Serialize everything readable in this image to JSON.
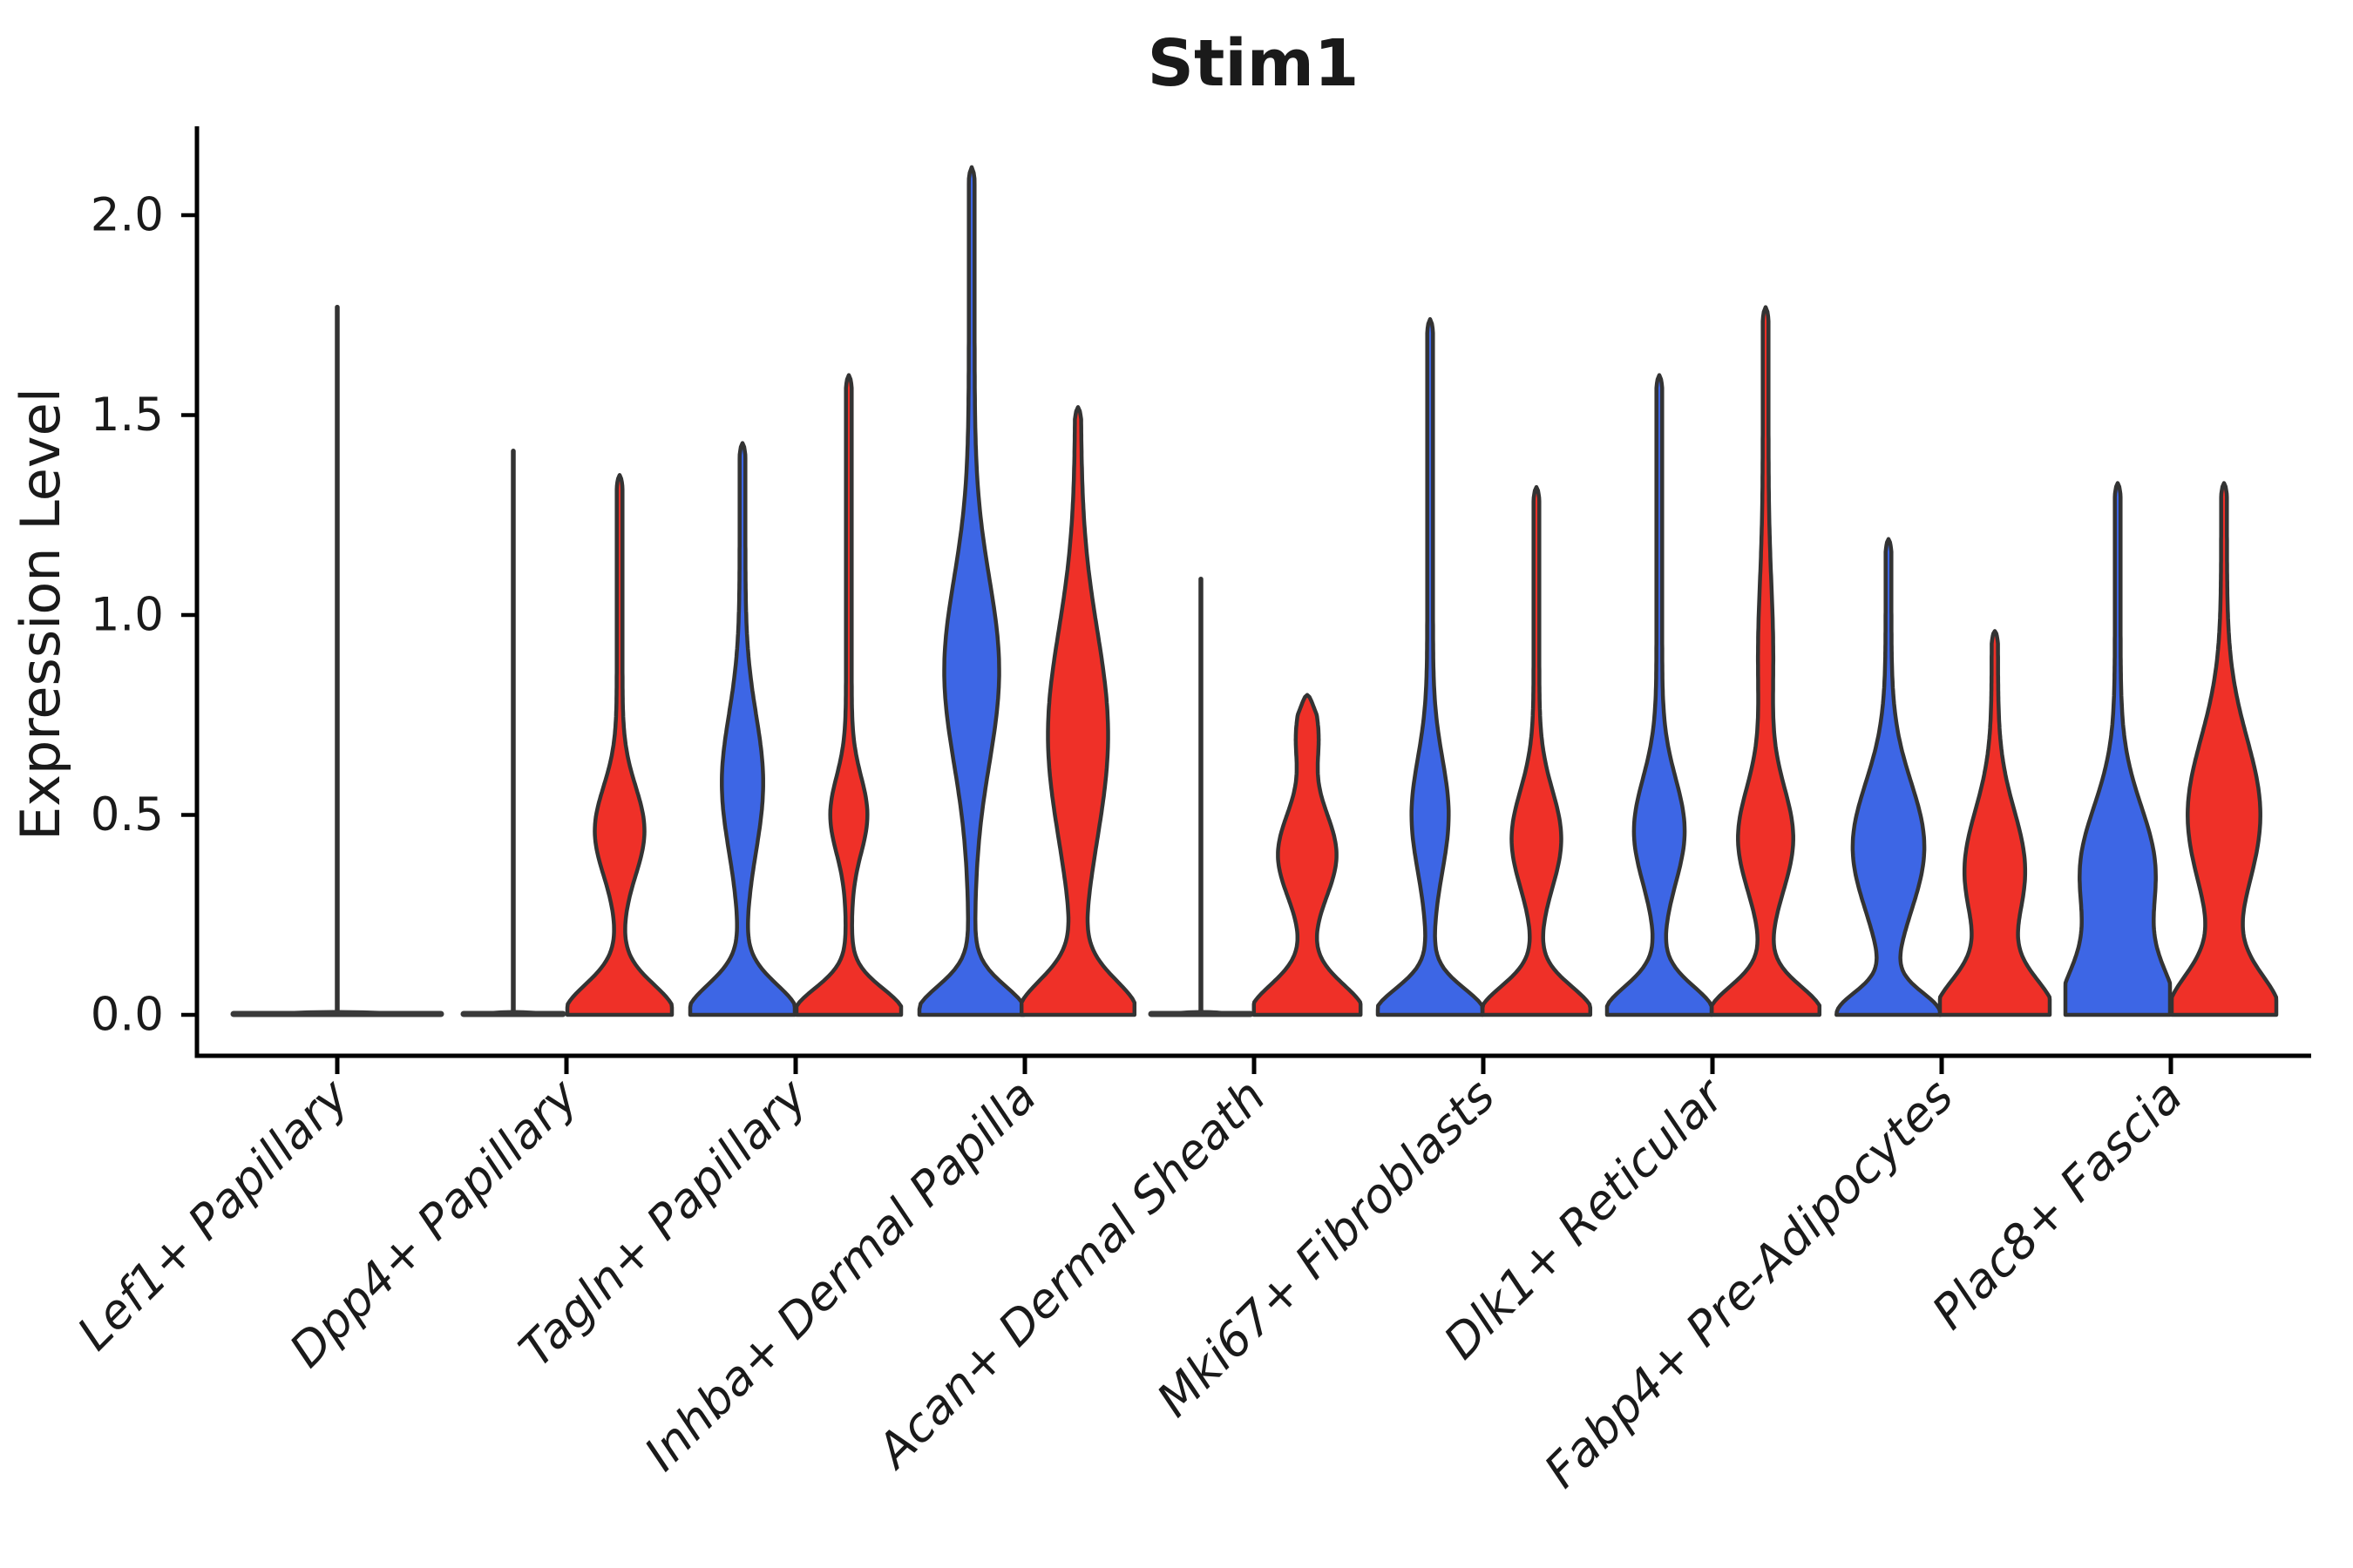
{
  "title": "Stim1",
  "colors": {
    "blue": "#3D66E5",
    "red": "#EF3028",
    "outline": "#333333",
    "flat": "#3A3A3A",
    "axis": "#000000"
  },
  "chart_data": {
    "type": "violin",
    "title": "Stim1",
    "xlabel": "",
    "ylabel": "Expression Level",
    "ylim": [
      0,
      2.2
    ],
    "yticks": [
      0,
      0.5,
      1.0,
      1.5,
      2.0
    ],
    "ytick_labels": [
      "0.0",
      "0.5",
      "1.0",
      "1.5",
      "2.0"
    ],
    "grid": false,
    "legend": "none",
    "split_colors": {
      "left": "blue",
      "right": "red"
    },
    "categories": [
      "Lef1+ Papillary",
      "Dpp4+ Papillary",
      "Tagln+ Papillary",
      "Inhba+ Dermal Papilla",
      "Acan+ Dermal Sheath",
      "Mki67+ Fibroblasts",
      "Dlk1+ Reticular",
      "Fabp4+ Pre-Adipocytes",
      "Plac8+ Fascia"
    ],
    "groups": [
      {
        "label": "Lef1+ Papillary",
        "violins": [
          {
            "split": "single",
            "flat": true,
            "max": 1.77
          }
        ]
      },
      {
        "label": "Dpp4+ Papillary",
        "violins": [
          {
            "split": "blue",
            "flat": true,
            "max": 1.41
          },
          {
            "split": "red",
            "flat": false,
            "max": 1.35,
            "base": [
              1.0,
              0.075
            ],
            "bumps": [
              [
                0.42,
                0.46,
                0.11
              ]
            ]
          }
        ]
      },
      {
        "label": "Tagln+ Papillary",
        "violins": [
          {
            "split": "blue",
            "flat": false,
            "max": 1.43,
            "base": [
              1.0,
              0.075
            ],
            "bumps": [
              [
                0.34,
                0.58,
                0.17
              ]
            ]
          },
          {
            "split": "red",
            "flat": false,
            "max": 1.6,
            "base": [
              1.0,
              0.065
            ],
            "bumps": [
              [
                0.3,
                0.5,
                0.095
              ]
            ]
          }
        ]
      },
      {
        "label": "Inhba+ Dermal Papilla",
        "violins": [
          {
            "split": "blue",
            "flat": false,
            "max": 2.12,
            "base": [
              1.0,
              0.07
            ],
            "bumps": [
              [
                0.47,
                0.86,
                0.23
              ]
            ]
          },
          {
            "split": "red",
            "flat": false,
            "max": 1.52,
            "base": [
              1.08,
              0.085
            ],
            "bumps": [
              [
                0.52,
                0.7,
                0.26
              ]
            ]
          }
        ]
      },
      {
        "label": "Acan+ Dermal Sheath",
        "violins": [
          {
            "split": "blue",
            "flat": true,
            "max": 1.09
          },
          {
            "split": "red",
            "flat": false,
            "max": 0.8,
            "base": [
              1.02,
              0.075
            ],
            "bumps": [
              [
                0.48,
                0.4,
                0.105
              ],
              [
                0.13,
                0.7,
                0.07
              ]
            ],
            "spike": 0.08,
            "tip": 0.05
          }
        ]
      },
      {
        "label": "Mki67+ Fibroblasts",
        "violins": [
          {
            "split": "blue",
            "flat": false,
            "max": 1.74,
            "base": [
              1.0,
              0.065
            ],
            "bumps": [
              [
                0.3,
                0.5,
                0.14
              ]
            ]
          },
          {
            "split": "red",
            "flat": false,
            "max": 1.32,
            "base": [
              1.03,
              0.07
            ],
            "bumps": [
              [
                0.42,
                0.44,
                0.12
              ]
            ]
          }
        ]
      },
      {
        "label": "Dlk1+ Reticular",
        "violins": [
          {
            "split": "blue",
            "flat": false,
            "max": 1.6,
            "base": [
              1.0,
              0.07
            ],
            "bumps": [
              [
                0.43,
                0.46,
                0.13
              ]
            ]
          },
          {
            "split": "red",
            "flat": false,
            "max": 1.77,
            "base": [
              1.03,
              0.07
            ],
            "bumps": [
              [
                0.47,
                0.44,
                0.13
              ],
              [
                0.09,
                0.9,
                0.18
              ]
            ]
          }
        ]
      },
      {
        "label": "Fabp4+ Pre-Adipocytes",
        "violins": [
          {
            "split": "blue",
            "flat": false,
            "max": 1.19,
            "base": [
              0.92,
              0.055
            ],
            "bumps": [
              [
                0.63,
                0.42,
                0.16
              ]
            ]
          },
          {
            "split": "red",
            "flat": false,
            "max": 0.96,
            "base": [
              1.05,
              0.09
            ],
            "bumps": [
              [
                0.52,
                0.36,
                0.15
              ]
            ],
            "spike": 0.06
          }
        ]
      },
      {
        "label": "Plac8+ Fascia",
        "violins": [
          {
            "split": "blue",
            "flat": false,
            "max": 1.33,
            "base": [
              1.0,
              0.12
            ],
            "bumps": [
              [
                0.66,
                0.36,
                0.16
              ]
            ]
          },
          {
            "split": "red",
            "flat": false,
            "max": 1.33,
            "base": [
              1.0,
              0.1
            ],
            "bumps": [
              [
                0.64,
                0.5,
                0.19
              ]
            ]
          }
        ]
      }
    ]
  }
}
